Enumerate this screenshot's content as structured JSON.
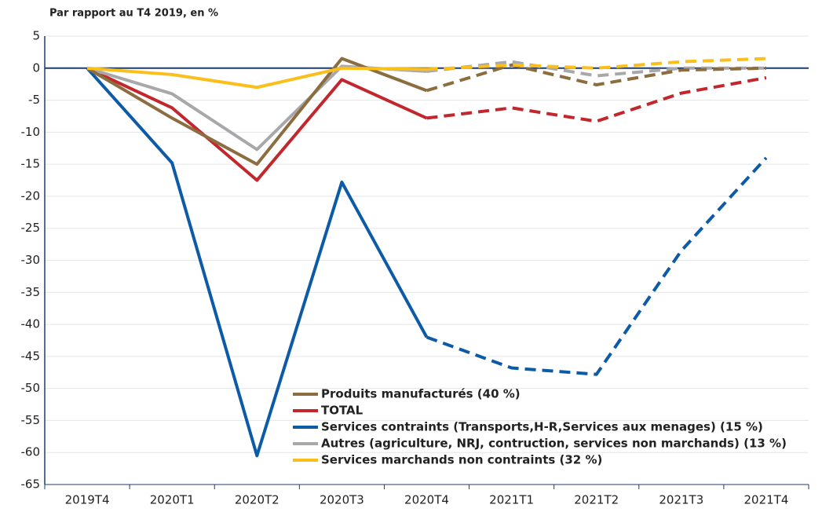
{
  "chart_data": {
    "type": "line",
    "title": "Par rapport au T4 2019, en %",
    "categories": [
      "2019T4",
      "2020T1",
      "2020T2",
      "2020T3",
      "2020T4",
      "2021T1",
      "2021T2",
      "2021T3",
      "2021T4"
    ],
    "dashed_from": "2020T4",
    "ylim": [
      -65,
      5
    ],
    "yticks": [
      5,
      0,
      -5,
      -10,
      -15,
      -20,
      -25,
      -30,
      -35,
      -40,
      -45,
      -50,
      -55,
      -60,
      -65
    ],
    "grid": true,
    "series": [
      {
        "name": "Produits manufacturés (40 %)",
        "color": "#8c6d3f",
        "values": [
          0,
          -7.8,
          -15,
          1.5,
          -3.5,
          0.5,
          -2.6,
          -0.3,
          0
        ]
      },
      {
        "name": "TOTAL",
        "color": "#c1272d",
        "values": [
          0,
          -6.2,
          -17.5,
          -1.8,
          -7.8,
          -6.2,
          -8.3,
          -3.9,
          -1.5
        ]
      },
      {
        "name": "Services contraints (Transports,H-R,Services aux menages) (15 %)",
        "color": "#0d5ba6",
        "values": [
          0,
          -14.8,
          -60.5,
          -17.8,
          -42,
          -46.8,
          -47.8,
          -28.5,
          -14
        ]
      },
      {
        "name": "Autres (agriculture, NRJ, contruction, services non marchands) (13 %)",
        "color": "#a8a8ab",
        "values": [
          0,
          -4,
          -12.7,
          0.3,
          -0.5,
          1,
          -1.2,
          0,
          0
        ]
      },
      {
        "name": "Services marchands non contraints (32 %)",
        "color": "#fbbf1b",
        "values": [
          0,
          -1,
          -3,
          0,
          -0.2,
          0.5,
          0,
          1,
          1.5
        ]
      }
    ]
  }
}
